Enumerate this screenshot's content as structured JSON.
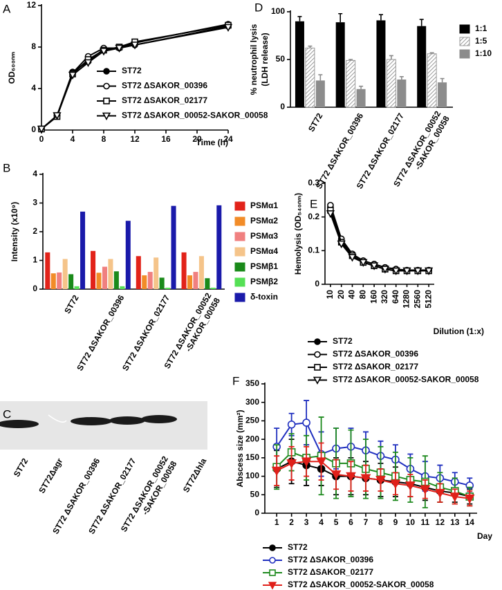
{
  "chart_data": [
    {
      "type": "line",
      "panel": "A",
      "y_label": "OD₆₀₀ₙₘ",
      "x_label": "Time (h)",
      "x": [
        0,
        2,
        4,
        6,
        8,
        10,
        12,
        24
      ],
      "xlim": [
        0,
        24
      ],
      "xticks": [
        0,
        4,
        8,
        12,
        16,
        20,
        24
      ],
      "ylim": [
        0,
        12
      ],
      "yticks": [
        0,
        4,
        8,
        12
      ],
      "series": [
        {
          "name": "ST72",
          "color": "#000000",
          "marker": "circle-filled",
          "values": [
            0.1,
            1.4,
            5.6,
            6.6,
            7.8,
            7.9,
            8.4,
            10.2
          ]
        },
        {
          "name": "ST72 ΔSAKOR_00396",
          "color": "#000000",
          "marker": "circle-open",
          "values": [
            0.1,
            1.4,
            5.5,
            7.1,
            7.9,
            7.9,
            8.2,
            10.0
          ]
        },
        {
          "name": "ST72 ΔSAKOR_02177",
          "color": "#000000",
          "marker": "square-open",
          "values": [
            0.1,
            1.3,
            5.4,
            6.8,
            7.7,
            8.0,
            8.5,
            10.1
          ]
        },
        {
          "name": "ST72 ΔSAKOR_00052-SAKOR_00058",
          "color": "#000000",
          "marker": "triangle-down-open",
          "values": [
            0.1,
            1.4,
            5.3,
            6.5,
            7.6,
            7.9,
            8.2,
            9.9
          ]
        }
      ]
    },
    {
      "type": "bar",
      "panel": "B",
      "y_label": "Intensity (x10⁹)",
      "categories": [
        "ST72",
        "ST72 ΔSAKOR_00396",
        "ST72 ΔSAKOR_02177",
        "ST72 ΔSAKOR_00052 -SAKOR_00058"
      ],
      "ylim": [
        0,
        4
      ],
      "yticks": [
        0,
        1,
        2,
        3,
        4
      ],
      "series": [
        {
          "name": "PSMα1",
          "color": "#e2231a",
          "values": [
            1.28,
            1.33,
            1.15,
            1.28
          ]
        },
        {
          "name": "PSMα2",
          "color": "#f28c28",
          "values": [
            0.55,
            0.57,
            0.48,
            0.48
          ]
        },
        {
          "name": "PSMα3",
          "color": "#f08080",
          "values": [
            0.58,
            0.78,
            0.6,
            0.6
          ]
        },
        {
          "name": "PSMα4",
          "color": "#f5c48a",
          "values": [
            1.05,
            1.05,
            1.1,
            1.15
          ]
        },
        {
          "name": "PSMβ1",
          "color": "#1a8a1a",
          "values": [
            0.52,
            0.62,
            0.4,
            0.38
          ]
        },
        {
          "name": "PSMβ2",
          "color": "#55e055",
          "values": [
            0.1,
            0.1,
            0.05,
            0.05
          ]
        },
        {
          "name": "δ-toxin",
          "color": "#1a1aaa",
          "values": [
            2.7,
            2.38,
            2.9,
            2.92
          ]
        }
      ]
    },
    {
      "type": "blot",
      "panel": "C",
      "lanes": [
        "ST72",
        "ST72Δagr",
        "ST72 ΔSAKOR_00396",
        "ST72 ΔSAKOR_02177",
        "ST72 ΔSAKOR_00052 -SAKOR_00058",
        "ST72Δhla"
      ]
    },
    {
      "type": "bar",
      "panel": "D",
      "y_label": [
        "% neutrophil lysis",
        "(LDH release)"
      ],
      "categories": [
        "ST72",
        "ST72 ΔSAKOR_00396",
        "ST72 ΔSAKOR_02177",
        "ST72 ΔSAKOR_00052 -SAKOR_00058"
      ],
      "ylim": [
        0,
        100
      ],
      "yticks": [
        0,
        50,
        100
      ],
      "series": [
        {
          "name": "1:1",
          "color": "#000000",
          "values": [
            90,
            89,
            91,
            85
          ],
          "errors": [
            5,
            9,
            6,
            7
          ]
        },
        {
          "name": "1:5",
          "color": "#d8d8d8",
          "values": [
            62,
            49,
            50,
            56
          ],
          "errors": [
            2,
            1,
            4,
            1
          ]
        },
        {
          "name": "1:10",
          "color": "#8c8c8c",
          "values": [
            28,
            19,
            29,
            26
          ],
          "errors": [
            6,
            3,
            3,
            4
          ]
        }
      ]
    },
    {
      "type": "line",
      "panel": "E",
      "y_label": "Hemolysis (OD₅₄₀ₙₘ)",
      "x_label": "Dilution (1:x)",
      "categories": [
        "10",
        "20",
        "40",
        "80",
        "160",
        "320",
        "640",
        "1280",
        "2560",
        "5120"
      ],
      "ylim": [
        0,
        0.3
      ],
      "yticks": [
        0,
        0.1,
        0.2,
        0.3
      ],
      "series": [
        {
          "name": "ST72",
          "color": "#000000",
          "marker": "circle-filled",
          "values": [
            0.23,
            0.13,
            0.09,
            0.07,
            0.06,
            0.05,
            0.045,
            0.04,
            0.04,
            0.04
          ]
        },
        {
          "name": "ST72 ΔSAKOR_00396",
          "color": "#000000",
          "marker": "circle-open",
          "values": [
            0.235,
            0.135,
            0.09,
            0.07,
            0.06,
            0.05,
            0.045,
            0.042,
            0.042,
            0.042
          ]
        },
        {
          "name": "ST72 ΔSAKOR_02177",
          "color": "#000000",
          "marker": "square-open",
          "values": [
            0.22,
            0.125,
            0.085,
            0.065,
            0.055,
            0.045,
            0.04,
            0.04,
            0.04,
            0.04
          ]
        },
        {
          "name": "ST72 ΔSAKOR_00052-SAKOR_00058",
          "color": "#000000",
          "marker": "triangle-down-open",
          "values": [
            0.21,
            0.12,
            0.08,
            0.065,
            0.055,
            0.045,
            0.04,
            0.04,
            0.04,
            0.04
          ]
        }
      ]
    },
    {
      "type": "line",
      "panel": "F",
      "y_label": "Abscess size (mm²)",
      "x_label": "Day",
      "x": [
        1,
        2,
        3,
        4,
        5,
        6,
        7,
        8,
        9,
        10,
        11,
        12,
        13,
        14
      ],
      "xlim": [
        0.2,
        14.5
      ],
      "xticks": [
        1,
        2,
        3,
        4,
        5,
        6,
        7,
        8,
        9,
        10,
        11,
        12,
        13,
        14
      ],
      "ylim": [
        0,
        350
      ],
      "yticks": [
        0,
        50,
        100,
        150,
        200,
        250,
        300,
        350
      ],
      "series": [
        {
          "name": "ST72",
          "color": "#000000",
          "marker": "circle-filled",
          "values": [
            120,
            140,
            130,
            120,
            100,
            100,
            95,
            90,
            85,
            80,
            70,
            60,
            55,
            45
          ],
          "errors": [
            50,
            60,
            55,
            45,
            50,
            50,
            45,
            45,
            40,
            35,
            35,
            30,
            25,
            20
          ]
        },
        {
          "name": "ST72 ΔSAKOR_00396",
          "color": "#1f2fbf",
          "marker": "circle-open",
          "values": [
            180,
            240,
            245,
            160,
            175,
            180,
            170,
            155,
            145,
            120,
            100,
            95,
            85,
            75
          ],
          "errors": [
            50,
            30,
            60,
            60,
            55,
            50,
            50,
            40,
            40,
            40,
            40,
            35,
            25,
            20
          ]
        },
        {
          "name": "ST72 ΔSAKOR_02177",
          "color": "#1e8a1e",
          "marker": "square-open",
          "values": [
            125,
            165,
            150,
            155,
            135,
            135,
            120,
            110,
            100,
            90,
            85,
            70,
            60,
            45
          ],
          "errors": [
            60,
            50,
            60,
            105,
            95,
            90,
            80,
            70,
            65,
            60,
            70,
            40,
            35,
            25
          ]
        },
        {
          "name": "ST72 ΔSAKOR_00052-SAKOR_00058",
          "color": "#e0201a",
          "marker": "triangle-down-filled",
          "values": [
            115,
            135,
            140,
            140,
            105,
            100,
            95,
            90,
            80,
            75,
            65,
            55,
            45,
            40
          ],
          "errors": [
            40,
            45,
            40,
            50,
            40,
            40,
            35,
            30,
            30,
            30,
            25,
            25,
            20,
            20
          ]
        }
      ]
    }
  ]
}
